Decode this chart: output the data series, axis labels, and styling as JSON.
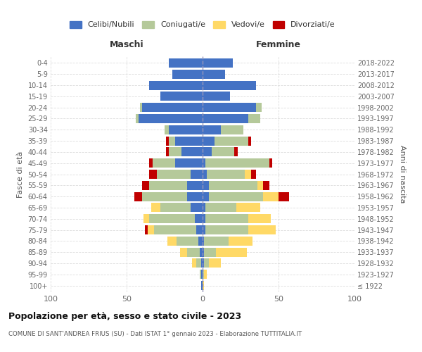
{
  "age_groups": [
    "100+",
    "95-99",
    "90-94",
    "85-89",
    "80-84",
    "75-79",
    "70-74",
    "65-69",
    "60-64",
    "55-59",
    "50-54",
    "45-49",
    "40-44",
    "35-39",
    "30-34",
    "25-29",
    "20-24",
    "15-19",
    "10-14",
    "5-9",
    "0-4"
  ],
  "birth_years": [
    "≤ 1922",
    "1923-1927",
    "1928-1932",
    "1933-1937",
    "1938-1942",
    "1943-1947",
    "1948-1952",
    "1953-1957",
    "1958-1962",
    "1963-1967",
    "1968-1972",
    "1973-1977",
    "1978-1982",
    "1983-1987",
    "1988-1992",
    "1993-1997",
    "1998-2002",
    "2003-2007",
    "2008-2012",
    "2013-2017",
    "2018-2022"
  ],
  "maschi": {
    "celibi": [
      1,
      1,
      1,
      2,
      3,
      4,
      5,
      8,
      10,
      10,
      8,
      18,
      14,
      18,
      22,
      42,
      40,
      28,
      35,
      20,
      22
    ],
    "coniugati": [
      0,
      1,
      3,
      8,
      14,
      28,
      30,
      20,
      30,
      25,
      22,
      15,
      8,
      4,
      3,
      2,
      1,
      0,
      0,
      0,
      0
    ],
    "vedovi": [
      0,
      0,
      3,
      5,
      6,
      4,
      4,
      6,
      0,
      0,
      0,
      0,
      0,
      0,
      0,
      0,
      0,
      0,
      0,
      0,
      0
    ],
    "divorziati": [
      0,
      0,
      0,
      0,
      0,
      2,
      0,
      0,
      5,
      5,
      5,
      2,
      2,
      2,
      0,
      0,
      0,
      0,
      0,
      0,
      0
    ]
  },
  "femmine": {
    "nubili": [
      0,
      0,
      1,
      1,
      1,
      2,
      2,
      2,
      4,
      4,
      3,
      2,
      6,
      8,
      12,
      30,
      35,
      18,
      35,
      15,
      20
    ],
    "coniugate": [
      0,
      1,
      3,
      8,
      16,
      28,
      28,
      20,
      36,
      32,
      25,
      42,
      15,
      22,
      15,
      8,
      4,
      0,
      0,
      0,
      0
    ],
    "vedove": [
      1,
      2,
      8,
      20,
      16,
      18,
      15,
      16,
      10,
      4,
      4,
      0,
      0,
      0,
      0,
      0,
      0,
      0,
      0,
      0,
      0
    ],
    "divorziate": [
      0,
      0,
      0,
      0,
      0,
      0,
      0,
      0,
      7,
      4,
      3,
      2,
      2,
      2,
      0,
      0,
      0,
      0,
      0,
      0,
      0
    ]
  },
  "colors": {
    "celibi_nubili": "#4472c4",
    "coniugati": "#b5c99a",
    "vedovi": "#ffd966",
    "divorziati": "#c00000"
  },
  "xlim": [
    -100,
    100
  ],
  "xticks": [
    -100,
    -50,
    0,
    50,
    100
  ],
  "xticklabels": [
    "100",
    "50",
    "0",
    "50",
    "100"
  ],
  "title": "Popolazione per età, sesso e stato civile - 2023",
  "subtitle": "COMUNE DI SANT'ANDREA FRIUS (SU) - Dati ISTAT 1° gennaio 2023 - Elaborazione TUTTITALIA.IT",
  "ylabel_left": "Fasce di età",
  "ylabel_right": "Anni di nascita",
  "header_maschi": "Maschi",
  "header_femmine": "Femmine",
  "legend_labels": [
    "Celibi/Nubili",
    "Coniugati/e",
    "Vedovi/e",
    "Divorziati/e"
  ],
  "background_color": "#ffffff",
  "bar_height": 0.82
}
